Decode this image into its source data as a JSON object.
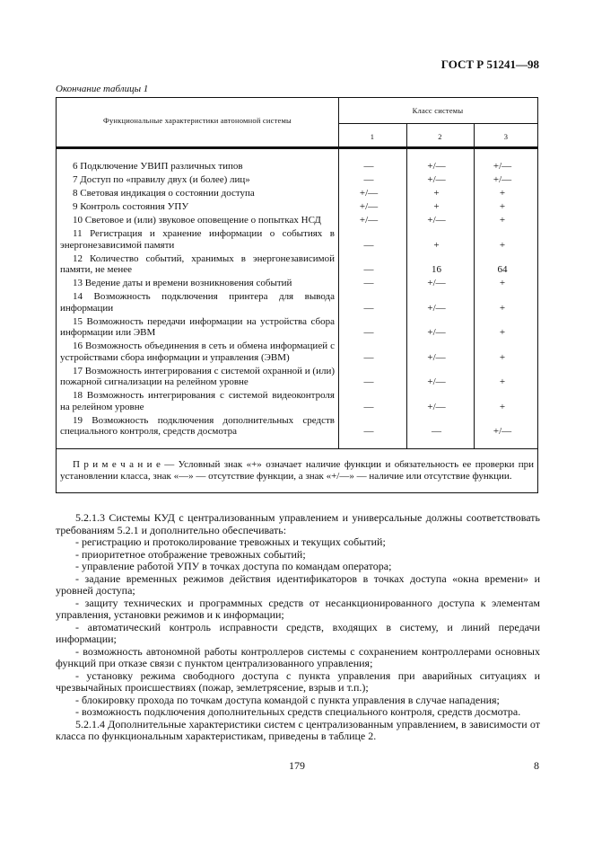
{
  "header": {
    "standard": "ГОСТ Р 51241—98"
  },
  "table": {
    "caption": "Окончание таблицы 1",
    "col_header": "Функциональные характеристики автономной системы",
    "class_header": "Класс системы",
    "classes": [
      "1",
      "2",
      "3"
    ],
    "rows": [
      {
        "label": "6 Подключение УВИП различных типов",
        "v": [
          "—",
          "+/—",
          "+/—"
        ]
      },
      {
        "label": "7 Доступ по «правилу двух (и более) лиц»",
        "v": [
          "—",
          "+/—",
          "+/—"
        ]
      },
      {
        "label": "8 Световая индикация о состоянии доступа",
        "v": [
          "+/—",
          "+",
          "+"
        ]
      },
      {
        "label": "9 Контроль состояния УПУ",
        "v": [
          "+/—",
          "+",
          "+"
        ]
      },
      {
        "label": "10 Световое и (или) звуковое оповещение о попытках НСД",
        "v": [
          "+/—",
          "+/—",
          "+"
        ]
      },
      {
        "label": "11 Регистрация и хранение информации о событиях в энергонезависимой памяти",
        "v": [
          "—",
          "+",
          "+"
        ]
      },
      {
        "label": "12 Количество событий, хранимых в энергонезависимой памяти, не менее",
        "v": [
          "—",
          "16",
          "64"
        ]
      },
      {
        "label": "13 Ведение даты и времени возникновения событий",
        "v": [
          "—",
          "+/—",
          "+"
        ]
      },
      {
        "label": "14 Возможность подключения принтера для вывода информации",
        "v": [
          "—",
          "+/—",
          "+"
        ]
      },
      {
        "label": "15 Возможность передачи информации на устройства сбора информации или ЭВМ",
        "v": [
          "—",
          "+/—",
          "+"
        ]
      },
      {
        "label": "16 Возможность объединения в сеть и обмена информацией с устройствами сбора информации и управления (ЭВМ)",
        "v": [
          "—",
          "+/—",
          "+"
        ]
      },
      {
        "label": "17 Возможность интегрирования с системой охранной и (или) пожарной сигнализации на релейном уровне",
        "v": [
          "—",
          "+/—",
          "+"
        ]
      },
      {
        "label": "18 Возможность интегрирования с системой видеоконтроля на релейном уровне",
        "v": [
          "—",
          "+/—",
          "+"
        ]
      },
      {
        "label": "19 Возможность подключения дополнительных средств специального контроля, средств досмотра",
        "v": [
          "—",
          "—",
          "+/—"
        ]
      }
    ],
    "note": "П р и м е ч а н и е — Условный знак «+» означает наличие функции и обязательность ее проверки при установлении класса, знак «—» — отсутствие функции, а знак «+/—» — наличие или отсутствие функции."
  },
  "body": [
    "5.2.1.3 Системы КУД с централизованным управлением и универсальные должны соответствовать требованиям 5.2.1 и дополнительно обеспечивать:",
    "- регистрацию и протоколирование тревожных и текущих событий;",
    "- приоритетное отображение тревожных событий;",
    "- управление работой УПУ в точках доступа по командам оператора;",
    "- задание временных режимов действия идентификаторов в точках доступа «окна времени» и уровней доступа;",
    "- защиту технических и программных средств от несанкционированного доступа к элементам управления, установки режимов и к информации;",
    "- автоматический контроль исправности средств, входящих в систему, и линий передачи информации;",
    "- возможность автономной работы контроллеров системы с сохранением контроллерами основных функций при отказе связи с пунктом централизованного управления;",
    "- установку режима свободного доступа с пункта управления при аварийных ситуациях и чрезвычайных происшествиях (пожар, землетрясение, взрыв и т.п.);",
    "- блокировку прохода по точкам доступа командой с пункта управления в случае нападения;",
    "- возможность подключения дополнительных средств специального контроля, средств досмотра.",
    "5.2.1.4 Дополнительные характеристики систем с централизованным управлением, в зависимости от класса по функциональным характеристикам, приведены в таблице 2."
  ],
  "footer": {
    "page": "179",
    "sheet": "8"
  }
}
